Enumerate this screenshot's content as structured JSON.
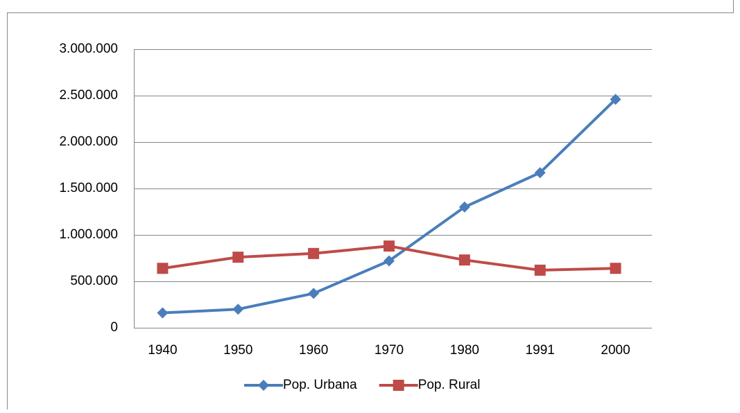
{
  "chart_data": {
    "type": "line",
    "categories": [
      "1940",
      "1950",
      "1960",
      "1970",
      "1980",
      "1991",
      "2000"
    ],
    "series": [
      {
        "name": "Pop. Urbana",
        "color": "#4a7ebb",
        "marker": "diamond",
        "values": [
          160000,
          200000,
          370000,
          720000,
          1300000,
          1670000,
          2460000
        ]
      },
      {
        "name": "Pop. Rural",
        "color": "#be4b48",
        "marker": "square",
        "values": [
          640000,
          760000,
          800000,
          880000,
          730000,
          620000,
          640000
        ]
      }
    ],
    "ylim": [
      0,
      3000000
    ],
    "yticks": [
      0,
      {
        "value": 500000,
        "label": "500.000"
      },
      {
        "value": 1000000,
        "label": "1.000.000"
      },
      {
        "value": 1500000,
        "label": "1.500.000"
      },
      {
        "value": 2000000,
        "label": "2.000.000"
      },
      {
        "value": 2500000,
        "label": "2.500.000"
      },
      {
        "value": 3000000,
        "label": "3.000.000"
      }
    ],
    "grid": true,
    "legend": "bottom"
  }
}
